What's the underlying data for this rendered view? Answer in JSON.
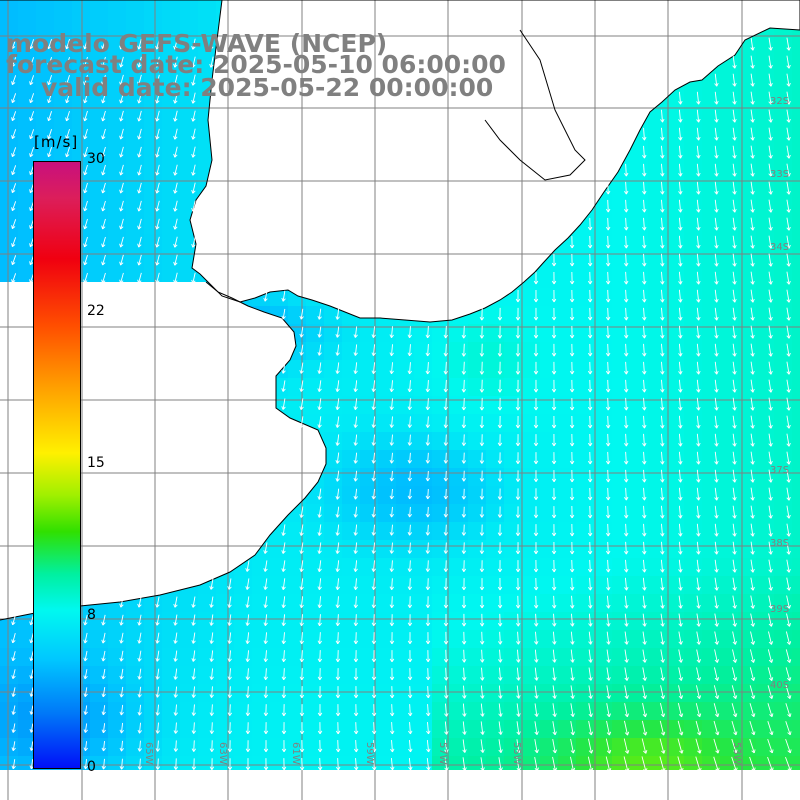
{
  "title": {
    "line1": "modelo GEFS-WAVE (NCEP)",
    "line2": "forecast date: 2025-05-10 06:00:00",
    "line3": "valid date: 2025-05-22 00:00:00"
  },
  "colorbar": {
    "unit": "[m/s]",
    "ticks": [
      "30",
      "22",
      "15",
      "8",
      "0"
    ],
    "min": 0,
    "max": 30
  },
  "map": {
    "lat_labels": [
      "32S",
      "33S",
      "34S",
      "37S",
      "38S",
      "39S",
      "40S"
    ],
    "lon_labels": [
      "65W",
      "63W",
      "61W",
      "59W",
      "57W",
      "55W",
      "53W"
    ],
    "colors": {
      "land": "#ffffff",
      "coast": "#000000",
      "grid": "#808080",
      "vector": "#ffffff",
      "label_gray": "#808080"
    },
    "field": {
      "type": "surface wind speed with direction arrows",
      "dominant_direction": "toward south-southwest",
      "typical_range_ms": [
        4,
        11
      ]
    }
  }
}
